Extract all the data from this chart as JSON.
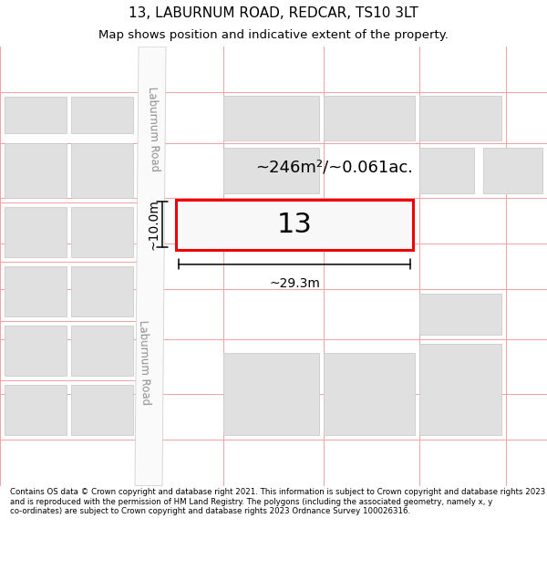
{
  "title": "13, LABURNUM ROAD, REDCAR, TS10 3LT",
  "subtitle": "Map shows position and indicative extent of the property.",
  "footer": "Contains OS data © Crown copyright and database right 2021. This information is subject to Crown copyright and database rights 2023 and is reproduced with the permission of HM Land Registry. The polygons (including the associated geometry, namely x, y co-ordinates) are subject to Crown copyright and database rights 2023 Ordnance Survey 100026316.",
  "background_color": "#ffffff",
  "map_background": "#f0f0f0",
  "bldg_fill": "#e0e0e0",
  "bldg_edge": "#cccccc",
  "plot_line_color": "#ee0000",
  "plot_fill_color": "#f8f8f8",
  "cad_line_color": "#f5a0a0",
  "road_fill": "#fafafa",
  "road_edge": "#d0d0d0",
  "road_label": "Laburnum Road",
  "plot_number": "13",
  "area_label": "~246m²/~0.061ac.",
  "width_label": "~29.3m",
  "height_label": "~10.0m",
  "title_fontsize": 11,
  "subtitle_fontsize": 9.5,
  "footer_fontsize": 6.2
}
